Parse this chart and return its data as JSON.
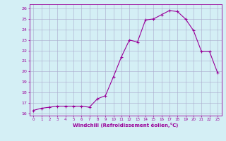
{
  "x": [
    0,
    1,
    2,
    3,
    4,
    5,
    6,
    7,
    8,
    9,
    10,
    11,
    12,
    13,
    14,
    15,
    16,
    17,
    18,
    19,
    20,
    21,
    22,
    23
  ],
  "y": [
    16.3,
    16.5,
    16.6,
    16.7,
    16.7,
    16.7,
    16.7,
    16.6,
    17.4,
    17.7,
    19.5,
    21.4,
    23.0,
    22.8,
    24.9,
    25.0,
    25.4,
    25.8,
    25.7,
    25.0,
    23.9,
    21.9,
    21.9,
    19.9
  ],
  "xlabel": "Windchill (Refroidissement éolien,°C)",
  "xlim": [
    -0.5,
    23.5
  ],
  "ylim": [
    15.8,
    26.4
  ],
  "yticks": [
    16,
    17,
    18,
    19,
    20,
    21,
    22,
    23,
    24,
    25,
    26
  ],
  "xticks": [
    0,
    1,
    2,
    3,
    4,
    5,
    6,
    7,
    8,
    9,
    10,
    11,
    12,
    13,
    14,
    15,
    16,
    17,
    18,
    19,
    20,
    21,
    22,
    23
  ],
  "line_color": "#990099",
  "marker": "+",
  "bg_color": "#d4eff5",
  "grid_color": "#aaaacc"
}
